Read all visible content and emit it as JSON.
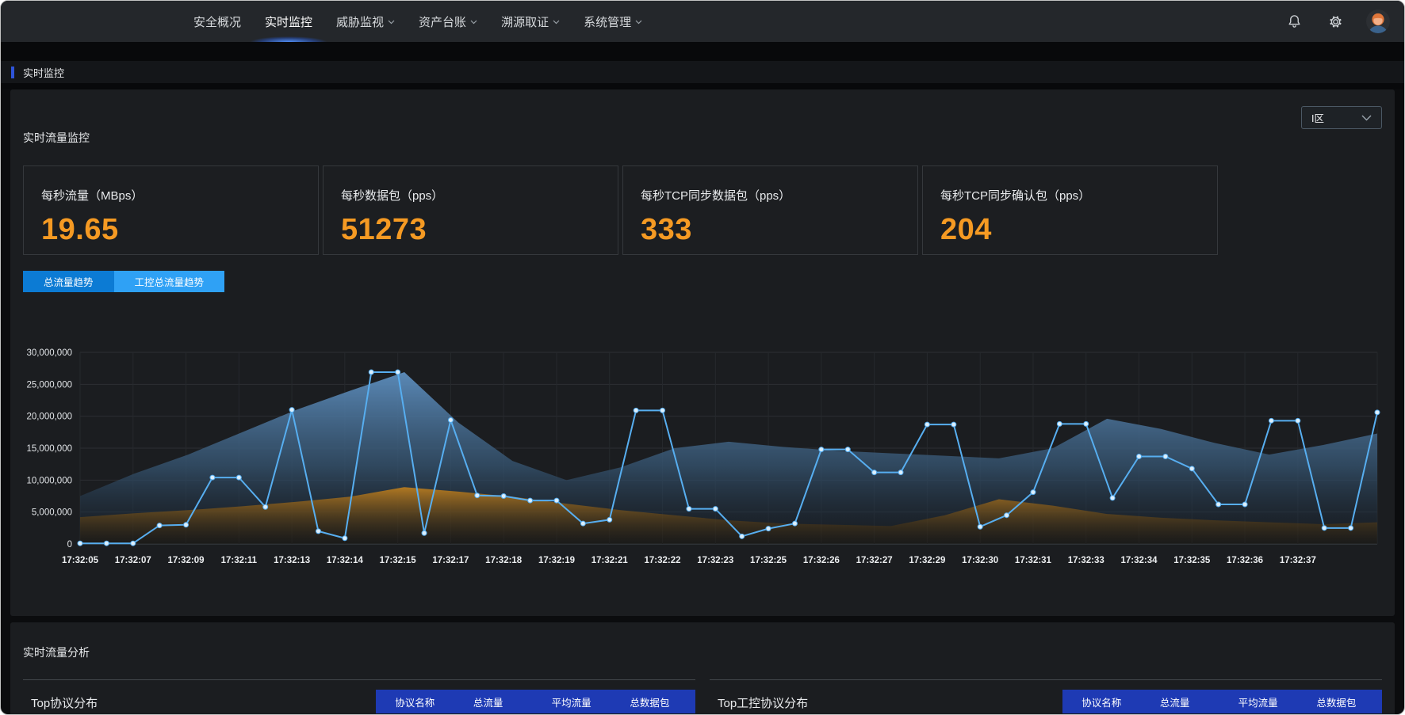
{
  "header": {
    "nav_items": [
      {
        "label": "安全概况",
        "active": false,
        "dropdown": false
      },
      {
        "label": "实时监控",
        "active": true,
        "dropdown": false
      },
      {
        "label": "威胁监视",
        "active": false,
        "dropdown": true
      },
      {
        "label": "资产台账",
        "active": false,
        "dropdown": true
      },
      {
        "label": "溯源取证",
        "active": false,
        "dropdown": true
      },
      {
        "label": "系统管理",
        "active": false,
        "dropdown": true
      }
    ]
  },
  "breadcrumb": {
    "label": "实时监控"
  },
  "monitor_section": {
    "title": "实时流量监控",
    "zone_select": {
      "value": "I区"
    },
    "stat_cards": [
      {
        "label": "每秒流量（MBps）",
        "value": "19.65"
      },
      {
        "label": "每秒数据包（pps）",
        "value": "51273"
      },
      {
        "label": "每秒TCP同步数据包（pps）",
        "value": "333"
      },
      {
        "label": "每秒TCP同步确认包（pps）",
        "value": "204"
      }
    ],
    "tabs": [
      {
        "label": "总流量趋势",
        "active": false
      },
      {
        "label": "工控总流量趋势",
        "active": true
      }
    ]
  },
  "chart_data": {
    "type": "line",
    "title": "工控总流量趋势",
    "ylim": [
      0,
      30000000
    ],
    "grid": true,
    "legend": "none",
    "y_ticks": [
      "30,000,000",
      "25,000,000",
      "20,000,000",
      "15,000,000",
      "10,000,000",
      "5,000,000",
      "0"
    ],
    "x_labels": [
      "17:32:05",
      "17:32:07",
      "17:32:09",
      "17:32:11",
      "17:32:13",
      "17:32:14",
      "17:32:15",
      "17:32:17",
      "17:32:18",
      "17:32:19",
      "17:32:21",
      "17:32:22",
      "17:32:23",
      "17:32:25",
      "17:32:26",
      "17:32:27",
      "17:32:29",
      "17:32:30",
      "17:32:31",
      "17:32:33",
      "17:32:34",
      "17:32:35",
      "17:32:36",
      "17:32:37"
    ],
    "label_every": 2,
    "series": [
      {
        "name": "background-area-blue",
        "type": "area",
        "color": "#4d7dab",
        "values": [
          7500000,
          11000000,
          14000000,
          17500000,
          21000000,
          24000000,
          26900000,
          19000000,
          13000000,
          10000000,
          12000000,
          15000000,
          16000000,
          15200000,
          14600000,
          14200000,
          13800000,
          13400000,
          15000000,
          19600000,
          18000000,
          15800000,
          14000000,
          15500000,
          17300000
        ]
      },
      {
        "name": "background-area-orange",
        "type": "area",
        "color": "#9c6a1d",
        "values": [
          4200000,
          4800000,
          5300000,
          5900000,
          6600000,
          7400000,
          8900000,
          8200000,
          7400000,
          6300000,
          5300000,
          4500000,
          3700000,
          3200000,
          3000000,
          2800000,
          4500000,
          7000000,
          6000000,
          4700000,
          4100000,
          3700000,
          3400000,
          3100000,
          3400000
        ]
      },
      {
        "name": "realtime-traffic-line",
        "type": "line",
        "color": "#57aef0",
        "values": [
          100000,
          100000,
          100000,
          2900000,
          3000000,
          10400000,
          10400000,
          5800000,
          21000000,
          2000000,
          900000,
          26900000,
          26900000,
          1700000,
          19400000,
          7600000,
          7500000,
          6800000,
          6800000,
          3200000,
          3800000,
          20900000,
          20900000,
          5500000,
          5500000,
          1200000,
          2400000,
          3200000,
          14800000,
          14800000,
          11200000,
          11200000,
          18700000,
          18700000,
          2700000,
          4500000,
          8100000,
          18800000,
          18800000,
          7200000,
          13700000,
          13700000,
          11800000,
          6200000,
          6200000,
          19300000,
          19300000,
          2500000,
          2500000,
          20600000
        ]
      }
    ]
  },
  "analysis_section": {
    "title": "实时流量分析",
    "panels": [
      {
        "title": "Top协议分布",
        "columns": [
          "协议名称",
          "总流量",
          "平均流量",
          "总数据包"
        ]
      },
      {
        "title": "Top工控协议分布",
        "columns": [
          "协议名称",
          "总流量",
          "平均流量",
          "总数据包"
        ]
      }
    ]
  },
  "colors": {
    "accent_orange": "#f59a23",
    "line_blue": "#57aef0",
    "tab_blue_dark": "#0c7bd4",
    "tab_blue_light": "#2fa1f5",
    "table_header_blue": "#1e3ab4",
    "breadcrumb_accent": "#2e54d9",
    "panel_bg": "#1b1d20",
    "header_bg": "#24272b"
  }
}
